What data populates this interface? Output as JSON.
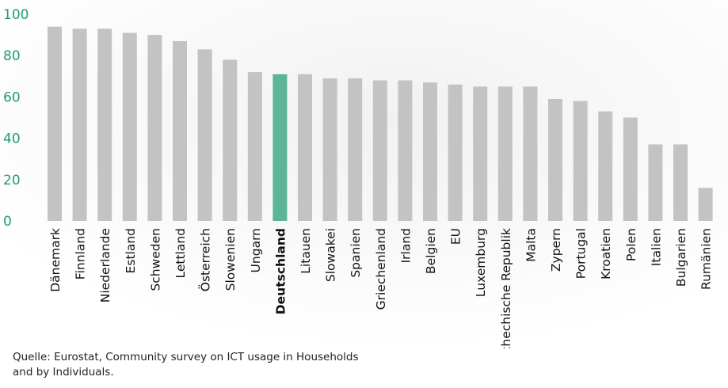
{
  "chart_data": {
    "type": "bar",
    "categories": [
      "Dänemark",
      "Finnland",
      "Niederlande",
      "Estland",
      "Schweden",
      "Lettland",
      "Österreich",
      "Slowenien",
      "Ungarn",
      "Deutschland",
      "Litauen",
      "Slowakei",
      "Spanien",
      "Griechenland",
      "Irland",
      "Belgien",
      "EU",
      "Luxemburg",
      "Tschechische Republik",
      "Malta",
      "Zypern",
      "Portugal",
      "Kroatien",
      "Polen",
      "Italien",
      "Bulgarien",
      "Rumänien"
    ],
    "values": [
      94,
      93,
      93,
      91,
      90,
      87,
      83,
      78,
      72,
      71,
      71,
      69,
      69,
      68,
      68,
      67,
      66,
      65,
      65,
      65,
      59,
      58,
      53,
      50,
      37,
      37,
      16
    ],
    "highlight": "Deutschland",
    "ylim": [
      0,
      100
    ],
    "yticks": [
      0,
      20,
      40,
      60,
      80,
      100
    ],
    "grid": false,
    "colors": {
      "bar": "#c3c3c3",
      "highlight": "#5bb596",
      "axis_text": "#1f9a7c",
      "label_text": "#111111"
    }
  },
  "source_line1": "Quelle: Eurostat, Community survey on ICT usage in Households",
  "source_line2": "and by Individuals."
}
